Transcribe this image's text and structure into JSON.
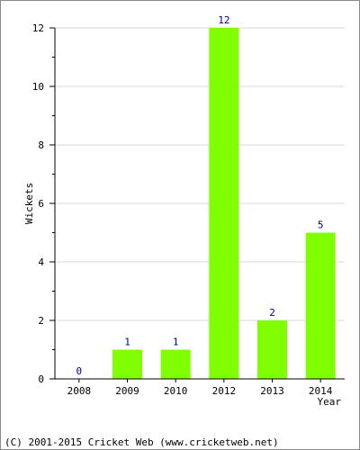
{
  "chart_data": {
    "type": "bar",
    "categories": [
      "2008",
      "2009",
      "2010",
      "2012",
      "2013",
      "2014"
    ],
    "values": [
      0,
      1,
      1,
      12,
      2,
      5
    ],
    "data_labels": [
      "0",
      "1",
      "1",
      "12",
      "2",
      "5"
    ],
    "title": "",
    "xlabel": "Year",
    "ylabel": "Wickets",
    "ylim": [
      0,
      12
    ],
    "yticks": [
      0,
      2,
      4,
      6,
      8,
      10,
      12
    ],
    "grid": true,
    "bar_color": "#80ff00",
    "label_color": "#000080"
  },
  "footer": {
    "copyright": "(C) 2001-2015 Cricket Web (www.cricketweb.net)"
  }
}
